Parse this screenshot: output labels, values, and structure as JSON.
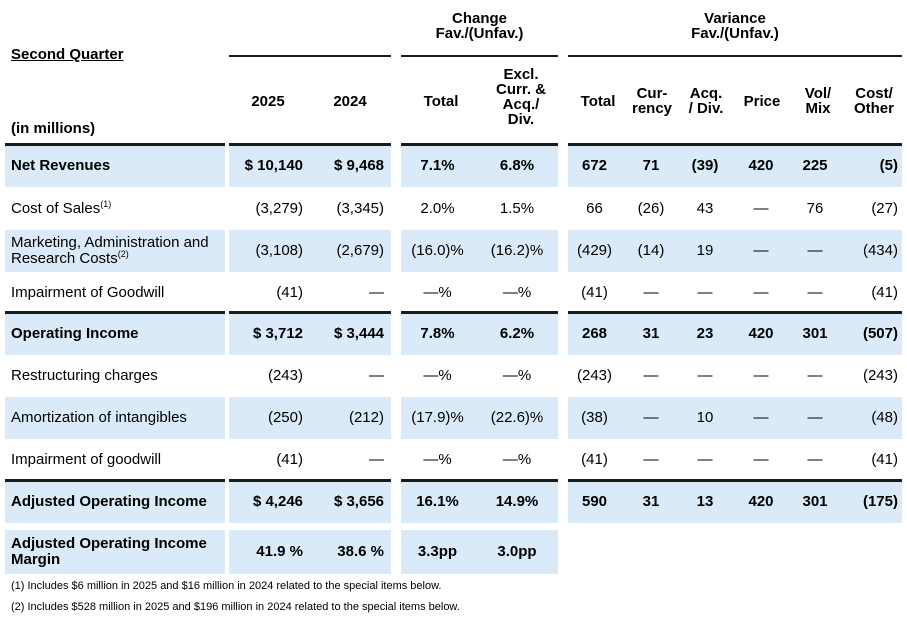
{
  "header": {
    "section_title": "Second Quarter",
    "units_label": "(in millions)",
    "change_group": [
      "Change",
      "Fav./(Unfav.)"
    ],
    "variance_group": [
      "Variance",
      "Fav./(Unfav.)"
    ],
    "col_2025": "2025",
    "col_2024": "2024",
    "col_total": "Total",
    "col_excl": [
      "Excl.",
      "Curr. &",
      "Acq./",
      "Div."
    ],
    "col_var_total": "Total",
    "col_currency": [
      "Cur-",
      "rency"
    ],
    "col_acq": [
      "Acq.",
      "/ Div."
    ],
    "col_price": "Price",
    "col_volmix": [
      "Vol/",
      "Mix"
    ],
    "col_cost": [
      "Cost/",
      "Other"
    ]
  },
  "rows": [
    {
      "label": "Net Revenues",
      "sup": "",
      "bold": true,
      "cells": [
        "$ 10,140",
        "$ 9,468",
        "7.1%",
        "6.8%",
        "672",
        "71",
        "(39)",
        "420",
        "225",
        "(5)"
      ]
    },
    {
      "label": "Cost of Sales",
      "sup": "(1)",
      "bold": false,
      "cells": [
        "(3,279)",
        "(3,345)",
        "2.0%",
        "1.5%",
        "66",
        "(26)",
        "43",
        "—",
        "76",
        "(27)"
      ]
    },
    {
      "label": "Marketing, Administration and Research Costs",
      "sup": "(2)",
      "bold": false,
      "cells": [
        "(3,108)",
        "(2,679)",
        "(16.0)%",
        "(16.2)%",
        "(429)",
        "(14)",
        "19",
        "—",
        "—",
        "(434)"
      ]
    },
    {
      "label": "Impairment of Goodwill",
      "sup": "",
      "bold": false,
      "cells": [
        "(41)",
        "—",
        "—%",
        "—%",
        "(41)",
        "—",
        "—",
        "—",
        "—",
        "(41)"
      ]
    },
    {
      "label": "Operating Income",
      "sup": "",
      "bold": true,
      "cells": [
        "$ 3,712",
        "$ 3,444",
        "7.8%",
        "6.2%",
        "268",
        "31",
        "23",
        "420",
        "301",
        "(507)"
      ]
    },
    {
      "label": "Restructuring charges",
      "sup": "",
      "bold": false,
      "cells": [
        "(243)",
        "—",
        "—%",
        "—%",
        "(243)",
        "—",
        "—",
        "—",
        "—",
        "(243)"
      ]
    },
    {
      "label": "Amortization of intangibles",
      "sup": "",
      "bold": false,
      "cells": [
        "(250)",
        "(212)",
        "(17.9)%",
        "(22.6)%",
        "(38)",
        "—",
        "10",
        "—",
        "—",
        "(48)"
      ]
    },
    {
      "label": "Impairment of goodwill",
      "sup": "",
      "bold": false,
      "cells": [
        "(41)",
        "—",
        "—%",
        "—%",
        "(41)",
        "—",
        "—",
        "—",
        "—",
        "(41)"
      ]
    },
    {
      "label": "Adjusted Operating Income",
      "sup": "",
      "bold": true,
      "cells": [
        "$ 4,246",
        "$ 3,656",
        "16.1%",
        "14.9%",
        "590",
        "31",
        "13",
        "420",
        "301",
        "(175)"
      ]
    },
    {
      "label": "Adjusted Operating Income Margin",
      "sup": "",
      "bold": true,
      "cells": [
        "41.9 %",
        "38.6 %",
        "3.3pp",
        "3.0pp"
      ]
    }
  ],
  "footnotes": [
    "(1) Includes $6 million in 2025 and $16 million in 2024 related to the special items below.",
    "(2) Includes $528 million in 2025 and $196 million in 2024 related to the special items below."
  ],
  "colors": {
    "band": "#dbeaf8",
    "rule": "#1a1a1a"
  }
}
